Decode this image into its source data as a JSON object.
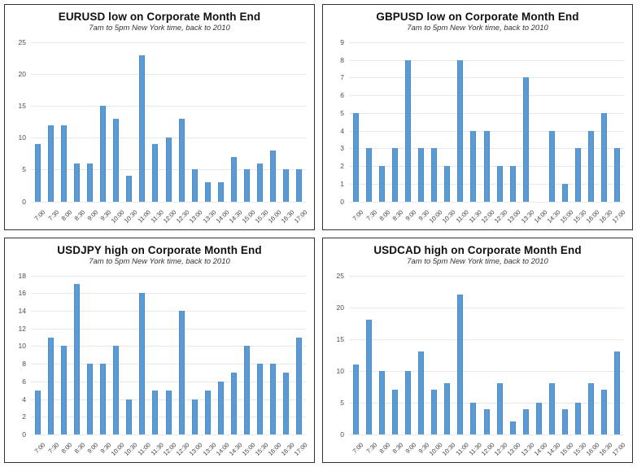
{
  "colors": {
    "bar_fill": "#5b9bd5",
    "bar_edge": "#4d8bc9",
    "gridline": "#e9e9e9",
    "axis_label": "#4d4d4d",
    "title_text": "#111111",
    "panel_border": "#2f2f2f",
    "background": "#ffffff"
  },
  "chart_data": [
    {
      "id": "eurusd-low",
      "type": "bar",
      "title": "EURUSD low on Corporate Month End",
      "subtitle": "7am to 5pm New York time, back to 2010",
      "xlabel": "",
      "ylabel": "",
      "ylim": [
        0,
        25
      ],
      "ytick_step": 5,
      "grid": true,
      "legend": "none",
      "categories": [
        "7:00",
        "7:30",
        "8:00",
        "8:30",
        "9:00",
        "9:30",
        "10:00",
        "10:30",
        "11:00",
        "11:30",
        "12:00",
        "12:30",
        "13:00",
        "13:30",
        "14:00",
        "14:30",
        "15:00",
        "15:30",
        "16:00",
        "16:30",
        "17:00"
      ],
      "values": [
        9,
        12,
        12,
        6,
        6,
        15,
        13,
        4,
        23,
        9,
        10,
        13,
        5,
        3,
        3,
        7,
        5,
        6,
        8,
        5,
        5
      ]
    },
    {
      "id": "gbpusd-low",
      "type": "bar",
      "title": "GBPUSD low on Corporate Month End",
      "subtitle": "7am to 5pm New York time, back to 2010",
      "xlabel": "",
      "ylabel": "",
      "ylim": [
        0,
        9
      ],
      "ytick_step": 1,
      "grid": true,
      "legend": "none",
      "categories": [
        "7:00",
        "7:30",
        "8:00",
        "8:30",
        "9:00",
        "9:30",
        "10:00",
        "10:30",
        "11:00",
        "11:30",
        "12:00",
        "12:30",
        "13:00",
        "13:30",
        "14:00",
        "14:30",
        "15:00",
        "15:30",
        "16:00",
        "16:30",
        "17:00"
      ],
      "values": [
        5,
        3,
        2,
        3,
        8,
        3,
        3,
        2,
        8,
        4,
        4,
        2,
        2,
        7,
        0,
        4,
        1,
        3,
        4,
        5,
        3
      ]
    },
    {
      "id": "usdjpy-high",
      "type": "bar",
      "title": "USDJPY high on Corporate Month End",
      "subtitle": "7am to 5pm New York time, back to 2010",
      "xlabel": "",
      "ylabel": "",
      "ylim": [
        0,
        18
      ],
      "ytick_step": 2,
      "grid": true,
      "legend": "none",
      "categories": [
        "7:00",
        "7:30",
        "8:00",
        "8:30",
        "9:00",
        "9:30",
        "10:00",
        "10:30",
        "11:00",
        "11:30",
        "12:00",
        "12:30",
        "13:00",
        "13:30",
        "14:00",
        "14:30",
        "15:00",
        "15:30",
        "16:00",
        "16:30",
        "17:00"
      ],
      "values": [
        5,
        11,
        10,
        17,
        8,
        8,
        10,
        4,
        16,
        5,
        5,
        14,
        4,
        5,
        6,
        7,
        10,
        8,
        8,
        7,
        11
      ]
    },
    {
      "id": "usdcad-high",
      "type": "bar",
      "title": "USDCAD high on Corporate Month End",
      "subtitle": "7am to 5pm New York time, back to 2010",
      "xlabel": "",
      "ylabel": "",
      "ylim": [
        0,
        25
      ],
      "ytick_step": 5,
      "grid": true,
      "legend": "none",
      "categories": [
        "7:00",
        "7:30",
        "8:00",
        "8:30",
        "9:00",
        "9:30",
        "10:00",
        "10:30",
        "11:00",
        "11:30",
        "12:00",
        "12:30",
        "13:00",
        "13:30",
        "14:00",
        "14:30",
        "15:00",
        "15:30",
        "16:00",
        "16:30",
        "17:00"
      ],
      "values": [
        11,
        18,
        10,
        7,
        10,
        13,
        7,
        8,
        22,
        5,
        4,
        8,
        2,
        4,
        5,
        8,
        4,
        5,
        8,
        7,
        13
      ]
    }
  ]
}
